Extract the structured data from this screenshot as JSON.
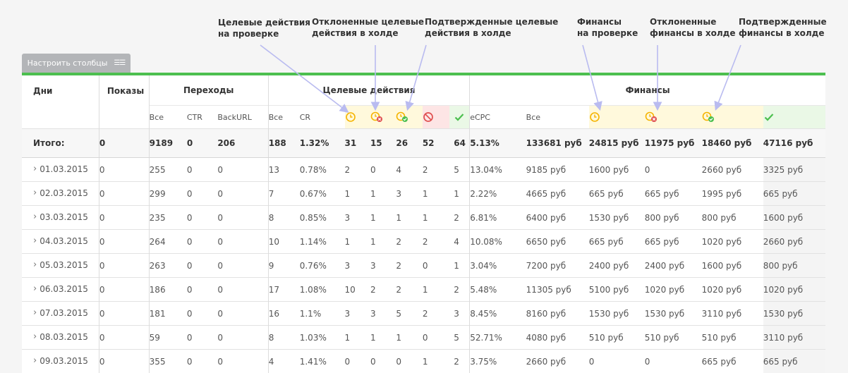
{
  "callouts": {
    "c1": "Целевые действия\nна проверке",
    "c2": "Отклоненные целевые\nдействия в холде",
    "c3": "Подтвержденные целевые\nдействия в холде",
    "c4": "Финансы\nна проверке",
    "c5": "Отклоненные\nфинансы в холде",
    "c6": "Подтвержденные\nфинансы в холде"
  },
  "config_button": {
    "label": "Настроить столбцы",
    "icon": "columns-icon"
  },
  "colors": {
    "accent": "#4cbf4f",
    "pending": "#f5b400",
    "rejected": "#e05050",
    "approved": "#4cbf4f"
  },
  "header": {
    "days": "Дни",
    "shows": "Показы",
    "clicks": "Переходы",
    "actions": "Целевые действия",
    "finance": "Финансы"
  },
  "subheader": {
    "clicks_all": "Все",
    "ctr": "CTR",
    "backurl": "BackURL",
    "actions_all": "Все",
    "cr": "CR",
    "ecpc": "eCPC",
    "finance_all": "Все"
  },
  "total": {
    "label": "Итого:",
    "shows": "0",
    "clicks_all": "9189",
    "ctr": "0",
    "backurl": "206",
    "actions_all": "188",
    "cr": "1.32%",
    "a_pending": "31",
    "a_rejected_hold": "15",
    "a_approved_hold": "26",
    "a_rejected": "52",
    "a_approved": "64",
    "ecpc": "5.13%",
    "fin_all": "133681 руб",
    "f_pending": "24815 руб",
    "f_rejected_hold": "11975 руб",
    "f_approved_hold": "18460 руб",
    "f_approved": "47116 руб"
  },
  "rows": [
    [
      "01.03.2015",
      "0",
      "255",
      "0",
      "0",
      "13",
      "0.78%",
      "2",
      "0",
      "4",
      "2",
      "5",
      "13.04%",
      "9185 руб",
      "1600 руб",
      "0",
      "2660 руб",
      "3325 руб"
    ],
    [
      "02.03.2015",
      "0",
      "299",
      "0",
      "0",
      "7",
      "0.67%",
      "1",
      "1",
      "3",
      "1",
      "1",
      "2.22%",
      "4665 руб",
      "665 руб",
      "665 руб",
      "1995 руб",
      "665 руб"
    ],
    [
      "03.03.2015",
      "0",
      "235",
      "0",
      "0",
      "8",
      "0.85%",
      "3",
      "1",
      "1",
      "1",
      "2",
      "6.81%",
      "6400 руб",
      "1530 руб",
      "800 руб",
      "800 руб",
      "1600 руб"
    ],
    [
      "04.03.2015",
      "0",
      "264",
      "0",
      "0",
      "10",
      "1.14%",
      "1",
      "1",
      "2",
      "2",
      "4",
      "10.08%",
      "6650 руб",
      "665 руб",
      "665 руб",
      "1020 руб",
      "2660 руб"
    ],
    [
      "05.03.2015",
      "0",
      "263",
      "0",
      "0",
      "9",
      "0.76%",
      "3",
      "3",
      "2",
      "0",
      "1",
      "3.04%",
      "7200 руб",
      "2400 руб",
      "2400 руб",
      "1600 руб",
      "800 руб"
    ],
    [
      "06.03.2015",
      "0",
      "186",
      "0",
      "0",
      "17",
      "1.08%",
      "10",
      "2",
      "2",
      "1",
      "2",
      "5.48%",
      "11305 руб",
      "5100 руб",
      "1020 руб",
      "1020 руб",
      "1020 руб"
    ],
    [
      "07.03.2015",
      "0",
      "181",
      "0",
      "0",
      "16",
      "1.1%",
      "3",
      "3",
      "5",
      "2",
      "3",
      "8.45%",
      "8160 руб",
      "1530 руб",
      "1530 руб",
      "3110 руб",
      "1530 руб"
    ],
    [
      "08.03.2015",
      "0",
      "59",
      "0",
      "0",
      "8",
      "1.03%",
      "1",
      "1",
      "1",
      "0",
      "5",
      "52.71%",
      "4080 руб",
      "510 руб",
      "510 руб",
      "510 руб",
      "3110 руб"
    ],
    [
      "09.03.2015",
      "0",
      "355",
      "0",
      "0",
      "4",
      "1.41%",
      "0",
      "0",
      "0",
      "1",
      "2",
      "3.75%",
      "2660 руб",
      "0",
      "0",
      "665 руб",
      "665 руб"
    ]
  ]
}
